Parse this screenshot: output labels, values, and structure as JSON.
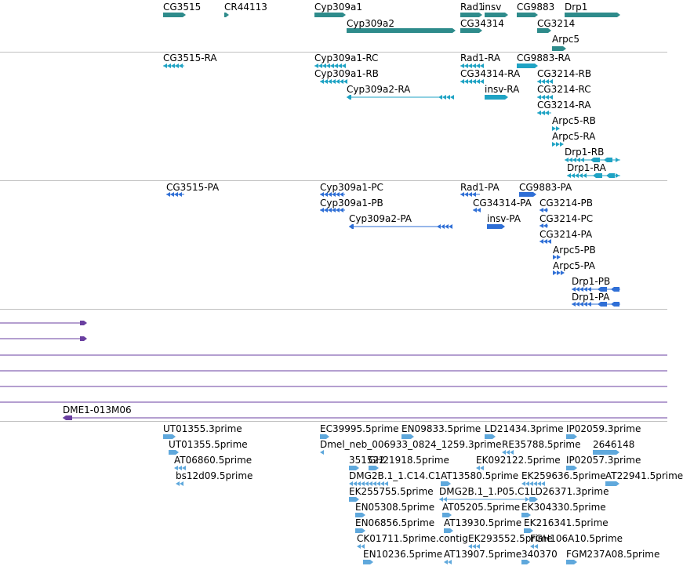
{
  "tracks": {
    "genes": {
      "color": "#2e8b8b",
      "features": [
        {
          "label": "CG3515"
        },
        {
          "label": "CR44113"
        },
        {
          "label": "Cyp309a1"
        },
        {
          "label": "Cyp309a2"
        },
        {
          "label": "Rad1"
        },
        {
          "label": "insv"
        },
        {
          "label": "CG34314"
        },
        {
          "label": "CG9883"
        },
        {
          "label": "CG3214"
        },
        {
          "label": "Drp1"
        },
        {
          "label": "Arpc5"
        }
      ]
    },
    "transcripts": {
      "color": "#1fa3c4",
      "features": [
        {
          "label": "CG3515-RA"
        },
        {
          "label": "Cyp309a1-RC"
        },
        {
          "label": "Cyp309a1-RB"
        },
        {
          "label": "Cyp309a2-RA"
        },
        {
          "label": "Rad1-RA"
        },
        {
          "label": "CG34314-RA"
        },
        {
          "label": "insv-RA"
        },
        {
          "label": "CG9883-RA"
        },
        {
          "label": "CG3214-RB"
        },
        {
          "label": "CG3214-RC"
        },
        {
          "label": "CG3214-RA"
        },
        {
          "label": "Arpc5-RB"
        },
        {
          "label": "Arpc5-RA"
        },
        {
          "label": "Drp1-RB"
        },
        {
          "label": "Drp1-RA"
        }
      ]
    },
    "proteins": {
      "color": "#2f6fd6",
      "features": [
        {
          "label": "CG3515-PA"
        },
        {
          "label": "Cyp309a1-PC"
        },
        {
          "label": "Cyp309a1-PB"
        },
        {
          "label": "Cyp309a2-PA"
        },
        {
          "label": "Rad1-PA"
        },
        {
          "label": "CG34314-PA"
        },
        {
          "label": "insv-PA"
        },
        {
          "label": "CG9883-PA"
        },
        {
          "label": "CG3214-PB"
        },
        {
          "label": "CG3214-PC"
        },
        {
          "label": "CG3214-PA"
        },
        {
          "label": "Arpc5-PB"
        },
        {
          "label": "Arpc5-PA"
        },
        {
          "label": "Drp1-PB"
        },
        {
          "label": "Drp1-PA"
        }
      ]
    },
    "clones": {
      "color": "#6a3fa0",
      "features": [
        {
          "label": "DME1-013M06"
        }
      ]
    },
    "ests": {
      "color": "#5fa8dc",
      "features": [
        {
          "label": "UT01355.3prime"
        },
        {
          "label": "UT01355.5prime"
        },
        {
          "label": "AT06860.5prime"
        },
        {
          "label": "bs12d09.5prime"
        },
        {
          "label": "EC39995.5prime"
        },
        {
          "label": "EN09833.5prime"
        },
        {
          "label": "LD21434.3prime"
        },
        {
          "label": "IP02059.3prime"
        },
        {
          "label": "Dmel_neb_006933_0824_1259.3prime"
        },
        {
          "label": "RE35788.5prime"
        },
        {
          "label": "2646148"
        },
        {
          "label": "351522"
        },
        {
          "label": "GH21918.5prime"
        },
        {
          "label": "EK092122.5prime"
        },
        {
          "label": "IP02057.3prime"
        },
        {
          "label": "DMG2B.1_1.C14.C1"
        },
        {
          "label": "AT13580.5prime"
        },
        {
          "label": "EK259636.5prime"
        },
        {
          "label": "AT22941.5prime"
        },
        {
          "label": "EK255755.5prime"
        },
        {
          "label": "DMG2B.1_1.P05.C1"
        },
        {
          "label": "LD26371.3prime"
        },
        {
          "label": "EN05308.5prime"
        },
        {
          "label": "AT05205.5prime"
        },
        {
          "label": "EK304330.5prime"
        },
        {
          "label": "EN06856.5prime"
        },
        {
          "label": "AT13930.5prime"
        },
        {
          "label": "EK216341.5prime"
        },
        {
          "label": "CK01711.5prime.contig"
        },
        {
          "label": "EK293552.5prime"
        },
        {
          "label": "FGH106A10.5prime"
        },
        {
          "label": "EN10236.5prime"
        },
        {
          "label": "AT13907.5prime"
        },
        {
          "label": "340370"
        },
        {
          "label": "FGM237A08.5prime"
        }
      ]
    }
  }
}
